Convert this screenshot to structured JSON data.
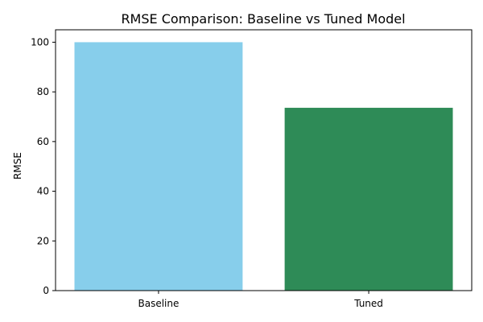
{
  "chart_data": {
    "type": "bar",
    "title": "RMSE Comparison: Baseline vs Tuned Model",
    "xlabel": "",
    "ylabel": "RMSE",
    "categories": [
      "Baseline",
      "Tuned"
    ],
    "values": [
      100.0,
      73.6
    ],
    "colors": [
      "#87ceeb",
      "#2e8b57"
    ],
    "ylim": [
      0,
      105
    ],
    "yticks": [
      0,
      20,
      40,
      60,
      80,
      100
    ],
    "grid": false,
    "legend": "none"
  }
}
